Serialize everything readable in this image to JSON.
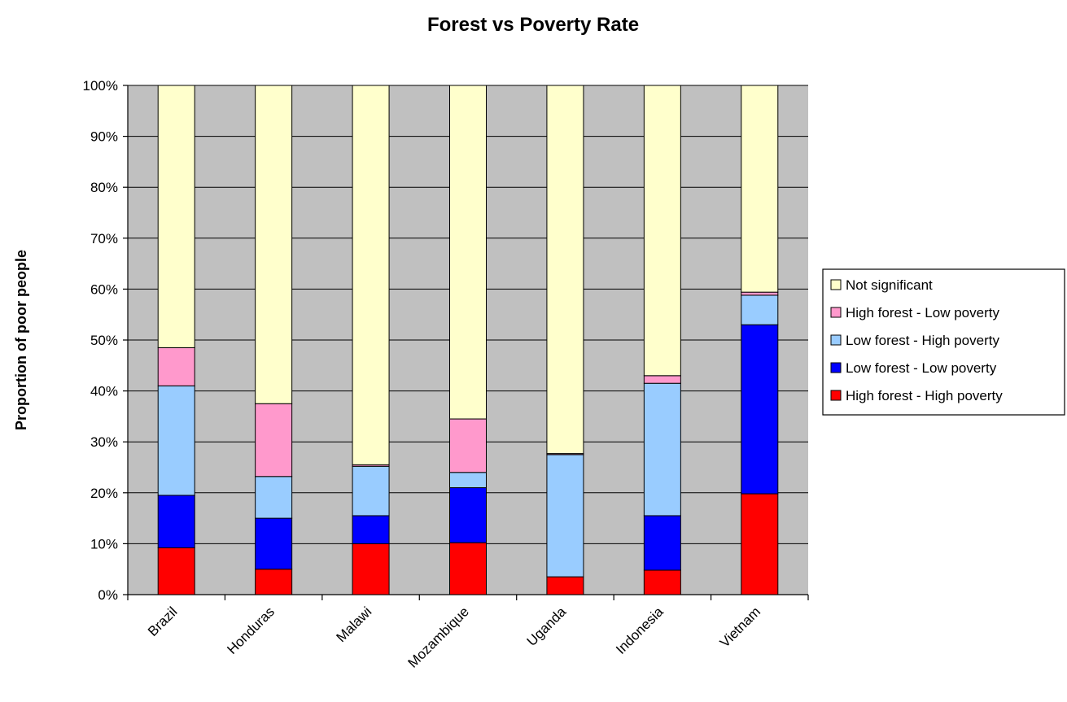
{
  "chart_data": {
    "type": "bar",
    "stacked": true,
    "title": "Forest vs Poverty Rate",
    "xlabel": "",
    "ylabel": "Proportion of poor people",
    "ylim": [
      0,
      100
    ],
    "yticks": [
      "0%",
      "10%",
      "20%",
      "30%",
      "40%",
      "50%",
      "60%",
      "70%",
      "80%",
      "90%",
      "100%"
    ],
    "grid": true,
    "legend_position": "right",
    "categories": [
      "Brazil",
      "Honduras",
      "Malawi",
      "Mozambique",
      "Uganda",
      "Indonesia",
      "Vietnam"
    ],
    "series": [
      {
        "name": "High forest - High poverty",
        "color": "#ff0000",
        "values": [
          9.2,
          5.0,
          10.0,
          10.2,
          3.5,
          4.8,
          19.8
        ]
      },
      {
        "name": "Low forest - Low poverty",
        "color": "#0000ff",
        "values": [
          10.3,
          10.0,
          5.5,
          10.8,
          0.0,
          10.7,
          33.2
        ]
      },
      {
        "name": "Low forest - High poverty",
        "color": "#99ccff",
        "values": [
          21.5,
          8.2,
          9.7,
          3.0,
          24.0,
          26.0,
          5.8
        ]
      },
      {
        "name": "High forest - Low poverty",
        "color": "#ff99cc",
        "values": [
          7.5,
          14.3,
          0.3,
          10.5,
          0.2,
          1.5,
          0.6
        ]
      },
      {
        "name": "Not significant",
        "color": "#ffffcc",
        "values": [
          51.5,
          62.5,
          74.5,
          65.5,
          72.3,
          57.0,
          40.6
        ]
      }
    ],
    "legend_order": [
      "Not significant",
      "High forest - Low poverty",
      "Low forest - High poverty",
      "Low forest - Low poverty",
      "High forest - High poverty"
    ],
    "plot_background": "#c0c0c0"
  }
}
